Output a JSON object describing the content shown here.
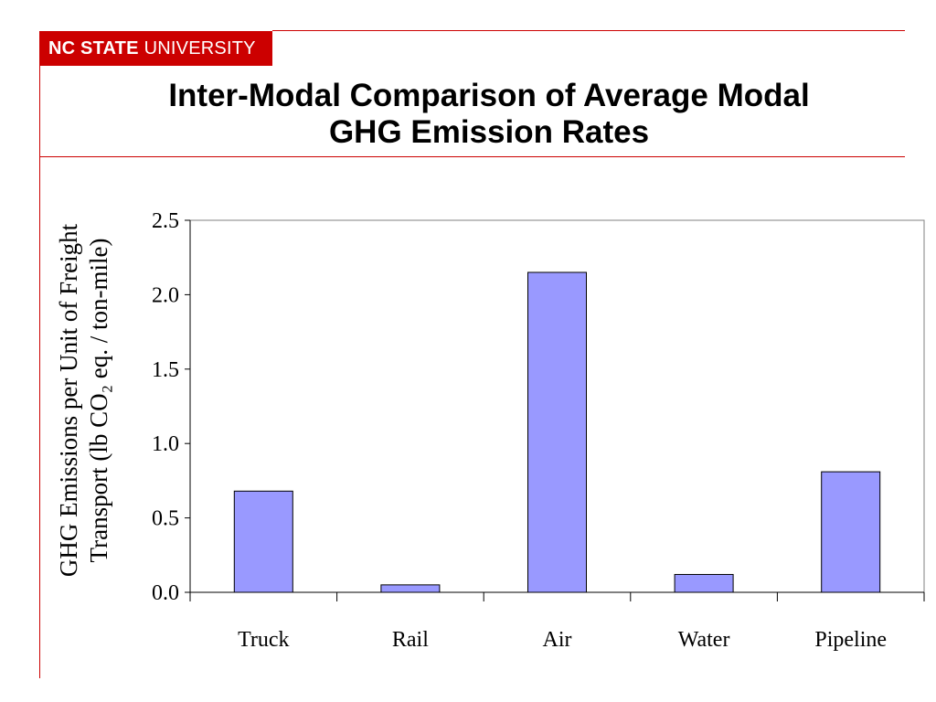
{
  "brand": {
    "name_bold": "NC STATE",
    "name_regular": "UNIVERSITY",
    "color": "#cc0000"
  },
  "slide": {
    "title_line1": "Inter-Modal Comparison of Average Modal",
    "title_line2": "GHG Emission Rates"
  },
  "chart_data": {
    "type": "bar",
    "title": "",
    "categories": [
      "Truck",
      "Rail",
      "Air",
      "Water",
      "Pipeline"
    ],
    "values": [
      0.68,
      0.05,
      2.15,
      0.12,
      0.81
    ],
    "xlabel": "",
    "ylabel_line1": "GHG Emissions per Unit of Freight",
    "ylabel_line2": "Transport (lb CO₂ eq. / ton-mile)",
    "ylim": [
      0,
      2.5
    ],
    "yticks": [
      "0.0",
      "0.5",
      "1.0",
      "1.5",
      "2.0",
      "2.5"
    ],
    "bar_color": "#9999ff",
    "grid": false,
    "legend": "none"
  }
}
